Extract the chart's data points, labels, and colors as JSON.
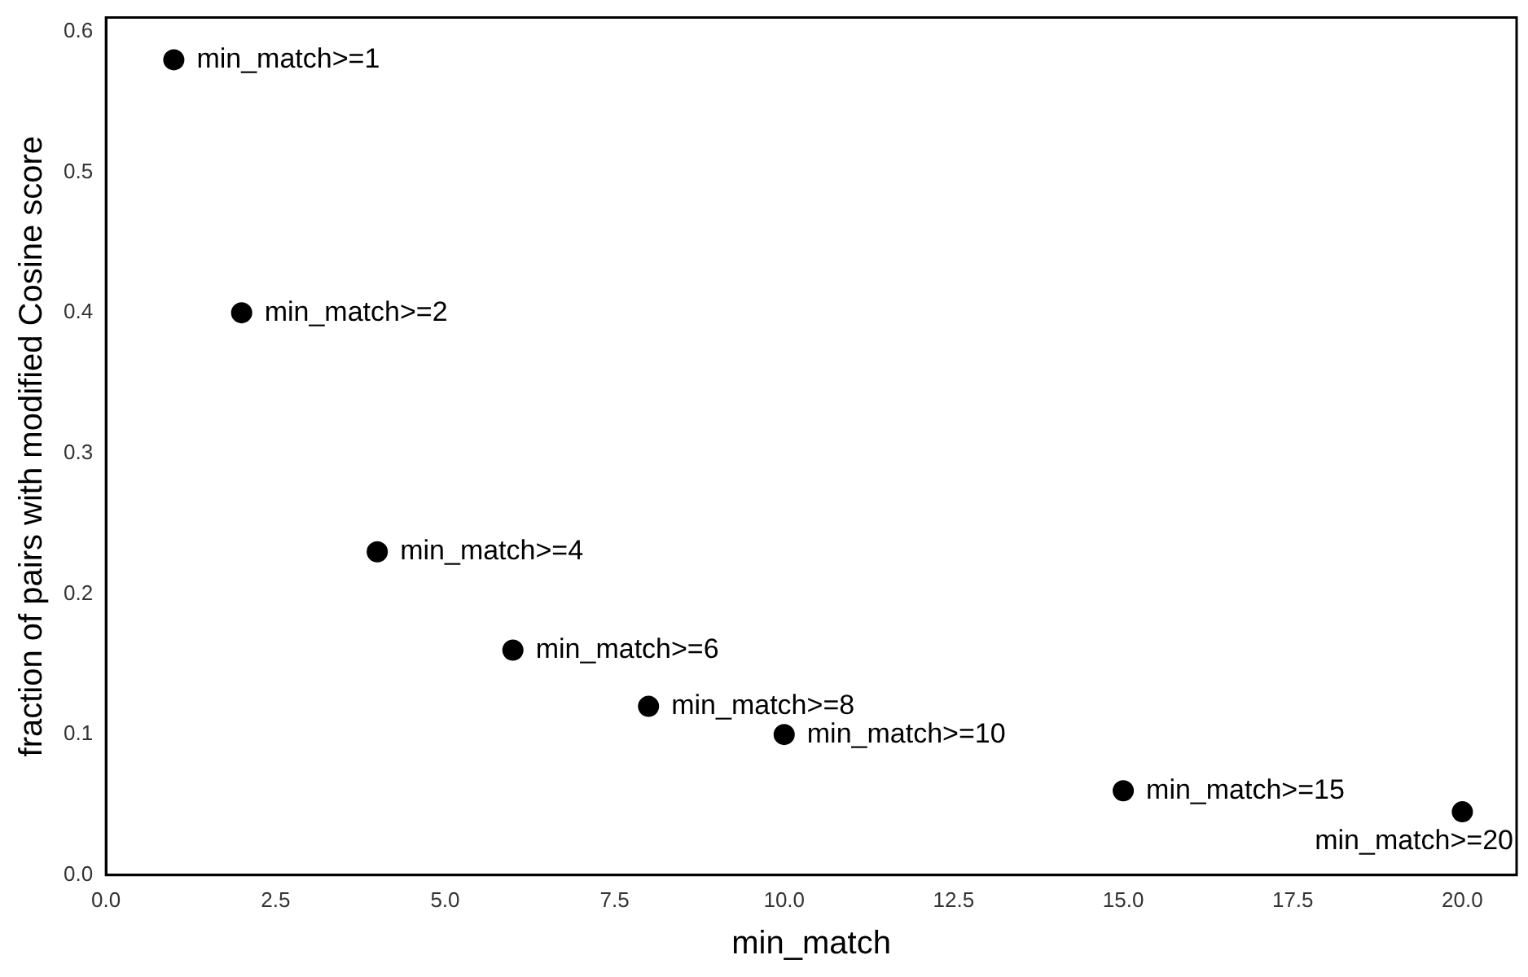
{
  "chart_data": {
    "type": "scatter",
    "xlabel": "min_match",
    "ylabel": "fraction of pairs with modified Cosine score",
    "x": [
      1,
      2,
      4,
      6,
      8,
      10,
      15,
      20
    ],
    "values": [
      0.58,
      0.4,
      0.23,
      0.16,
      0.12,
      0.1,
      0.06,
      0.045
    ],
    "color": "#000000",
    "marker": "circle",
    "grid": false,
    "legend": false,
    "xlim": [
      0,
      20.8
    ],
    "ylim": [
      0,
      0.61
    ],
    "xticks": [
      {
        "value": 0,
        "label": "0.0"
      },
      {
        "value": 2.5,
        "label": "2.5"
      },
      {
        "value": 5,
        "label": "5.0"
      },
      {
        "value": 7.5,
        "label": "7.5"
      },
      {
        "value": 10,
        "label": "10.0"
      },
      {
        "value": 12.5,
        "label": "12.5"
      },
      {
        "value": 15,
        "label": "15.0"
      },
      {
        "value": 17.5,
        "label": "17.5"
      },
      {
        "value": 20,
        "label": "20.0"
      }
    ],
    "yticks": [
      {
        "value": 0,
        "label": "0.0"
      },
      {
        "value": 0.1,
        "label": "0.1"
      },
      {
        "value": 0.2,
        "label": "0.2"
      },
      {
        "value": 0.3,
        "label": "0.3"
      },
      {
        "value": 0.4,
        "label": "0.4"
      },
      {
        "value": 0.5,
        "label": "0.5"
      },
      {
        "value": 0.6,
        "label": "0.6"
      }
    ],
    "annotations": [
      {
        "text": "min_match>=1",
        "x": 1,
        "y": 0.58
      },
      {
        "text": "min_match>=2",
        "x": 2,
        "y": 0.4
      },
      {
        "text": "min_match>=4",
        "x": 4,
        "y": 0.23
      },
      {
        "text": "min_match>=6",
        "x": 6,
        "y": 0.16
      },
      {
        "text": "min_match>=8",
        "x": 8,
        "y": 0.12
      },
      {
        "text": "min_match>=10",
        "x": 10,
        "y": 0.1
      },
      {
        "text": "min_match>=15",
        "x": 15,
        "y": 0.06
      },
      {
        "text": "min_match>=20",
        "x": 20,
        "y": 0.045
      }
    ]
  }
}
